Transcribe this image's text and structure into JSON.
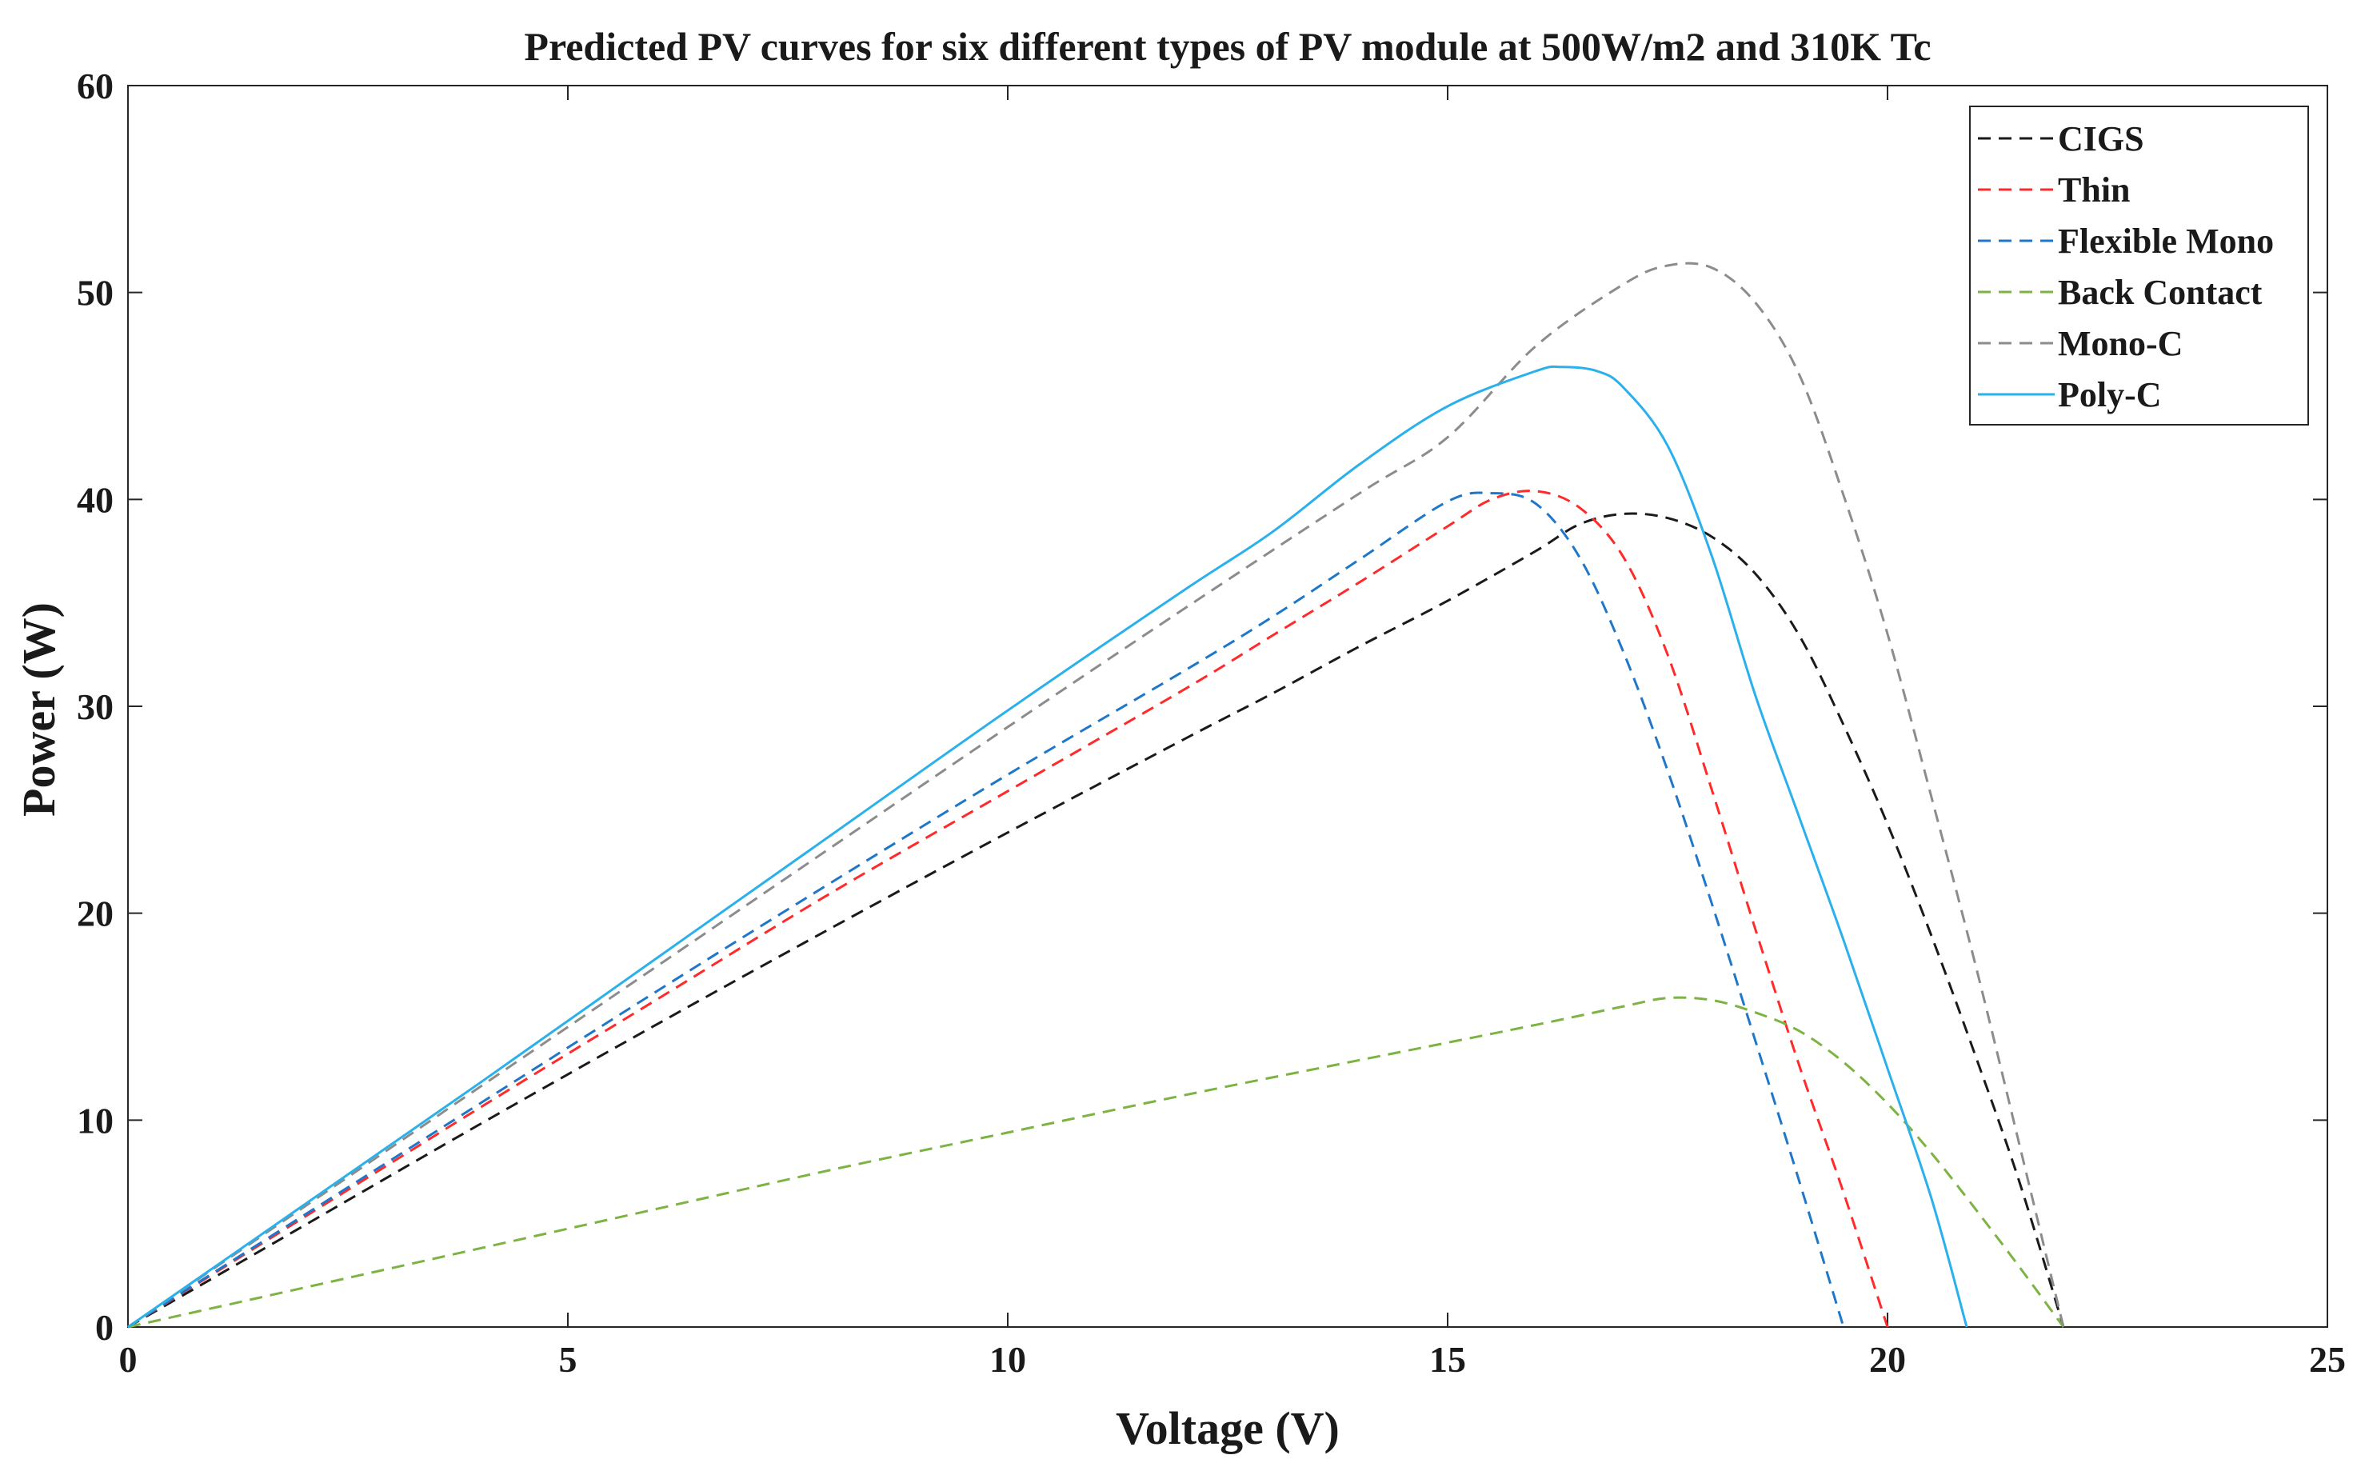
{
  "chart_data": {
    "type": "line",
    "title": "Predicted PV curves for six different types of PV module at 500W/m2 and 310K Tc",
    "xlabel": "Voltage (V)",
    "ylabel": "Power (W)",
    "xlim": [
      0,
      25
    ],
    "ylim": [
      0,
      60
    ],
    "xticks": [
      0,
      5,
      10,
      15,
      20,
      25
    ],
    "yticks": [
      0,
      10,
      20,
      30,
      40,
      50,
      60
    ],
    "grid": false,
    "legend_position": "top-right",
    "series": [
      {
        "name": "CIGS",
        "color": "#1a1a1a",
        "dash": true,
        "points": [
          [
            0,
            0
          ],
          [
            2,
            4.9
          ],
          [
            4,
            9.8
          ],
          [
            6,
            14.6
          ],
          [
            8,
            19.3
          ],
          [
            10,
            23.9
          ],
          [
            12,
            28.4
          ],
          [
            13,
            30.6
          ],
          [
            14,
            32.9
          ],
          [
            15,
            35.1
          ],
          [
            16,
            37.5
          ],
          [
            16.5,
            38.8
          ],
          [
            17,
            39.3
          ],
          [
            17.5,
            39.1
          ],
          [
            18,
            38.2
          ],
          [
            18.5,
            36.4
          ],
          [
            19,
            33.4
          ],
          [
            19.5,
            29.1
          ],
          [
            20,
            24.3
          ],
          [
            20.5,
            18.9
          ],
          [
            21,
            13.1
          ],
          [
            21.5,
            7.0
          ],
          [
            22,
            0
          ]
        ]
      },
      {
        "name": "Thin",
        "color": "#ff2a2a",
        "dash": true,
        "points": [
          [
            0,
            0
          ],
          [
            2,
            5.3
          ],
          [
            4,
            10.6
          ],
          [
            6,
            15.8
          ],
          [
            8,
            21.0
          ],
          [
            10,
            25.9
          ],
          [
            12,
            30.8
          ],
          [
            13,
            33.4
          ],
          [
            14,
            36.0
          ],
          [
            15,
            38.7
          ],
          [
            15.5,
            40.0
          ],
          [
            16,
            40.4
          ],
          [
            16.5,
            39.6
          ],
          [
            17,
            37.2
          ],
          [
            17.5,
            32.5
          ],
          [
            18,
            26.0
          ],
          [
            18.5,
            19.2
          ],
          [
            19,
            12.6
          ],
          [
            19.5,
            6.5
          ],
          [
            20,
            0
          ]
        ]
      },
      {
        "name": "Flexible Mono",
        "color": "#1f77c9",
        "dash": true,
        "points": [
          [
            0,
            0
          ],
          [
            2,
            5.4
          ],
          [
            4,
            10.8
          ],
          [
            6,
            16.2
          ],
          [
            8,
            21.5
          ],
          [
            10,
            26.7
          ],
          [
            12,
            31.7
          ],
          [
            13,
            34.3
          ],
          [
            14,
            37.1
          ],
          [
            15,
            39.9
          ],
          [
            15.5,
            40.3
          ],
          [
            16,
            39.8
          ],
          [
            16.5,
            37.2
          ],
          [
            17,
            32.6
          ],
          [
            17.5,
            26.9
          ],
          [
            18,
            20.5
          ],
          [
            18.5,
            13.8
          ],
          [
            19,
            7.0
          ],
          [
            19.5,
            0
          ]
        ]
      },
      {
        "name": "Back Contact",
        "color": "#7cb342",
        "dash": true,
        "points": [
          [
            0,
            0
          ],
          [
            2,
            1.9
          ],
          [
            4,
            3.8
          ],
          [
            6,
            5.7
          ],
          [
            8,
            7.6
          ],
          [
            10,
            9.4
          ],
          [
            12,
            11.2
          ],
          [
            14,
            12.9
          ],
          [
            16,
            14.6
          ],
          [
            17,
            15.5
          ],
          [
            17.5,
            15.9
          ],
          [
            18,
            15.8
          ],
          [
            18.5,
            15.2
          ],
          [
            19,
            14.3
          ],
          [
            19.5,
            12.8
          ],
          [
            20,
            10.8
          ],
          [
            20.5,
            8.4
          ],
          [
            21,
            5.7
          ],
          [
            21.5,
            2.9
          ],
          [
            22,
            0
          ]
        ]
      },
      {
        "name": "Mono-C",
        "color": "#8c8c8c",
        "dash": true,
        "points": [
          [
            0,
            0
          ],
          [
            2,
            5.8
          ],
          [
            4,
            11.6
          ],
          [
            6,
            17.4
          ],
          [
            8,
            23.2
          ],
          [
            10,
            29.0
          ],
          [
            12,
            34.7
          ],
          [
            14,
            40.3
          ],
          [
            15,
            43.0
          ],
          [
            16,
            47.4
          ],
          [
            17,
            50.4
          ],
          [
            17.5,
            51.3
          ],
          [
            18,
            51.2
          ],
          [
            18.5,
            49.5
          ],
          [
            19,
            46.0
          ],
          [
            19.5,
            40.2
          ],
          [
            20,
            33.5
          ],
          [
            20.5,
            25.6
          ],
          [
            21,
            17.5
          ],
          [
            21.5,
            8.8
          ],
          [
            22,
            0
          ]
        ]
      },
      {
        "name": "Poly-C",
        "color": "#2ab0ea",
        "dash": false,
        "points": [
          [
            0,
            0
          ],
          [
            2,
            5.9
          ],
          [
            4,
            11.8
          ],
          [
            6,
            17.8
          ],
          [
            8,
            23.8
          ],
          [
            10,
            29.8
          ],
          [
            12,
            35.6
          ],
          [
            13,
            38.4
          ],
          [
            14,
            41.7
          ],
          [
            15,
            44.5
          ],
          [
            16,
            46.2
          ],
          [
            16.3,
            46.4
          ],
          [
            16.7,
            46.2
          ],
          [
            17,
            45.4
          ],
          [
            17.5,
            42.6
          ],
          [
            18,
            37.3
          ],
          [
            18.5,
            30.5
          ],
          [
            19,
            24.6
          ],
          [
            19.5,
            18.7
          ],
          [
            20,
            12.5
          ],
          [
            20.5,
            6.2
          ],
          [
            20.9,
            0
          ]
        ]
      }
    ]
  }
}
